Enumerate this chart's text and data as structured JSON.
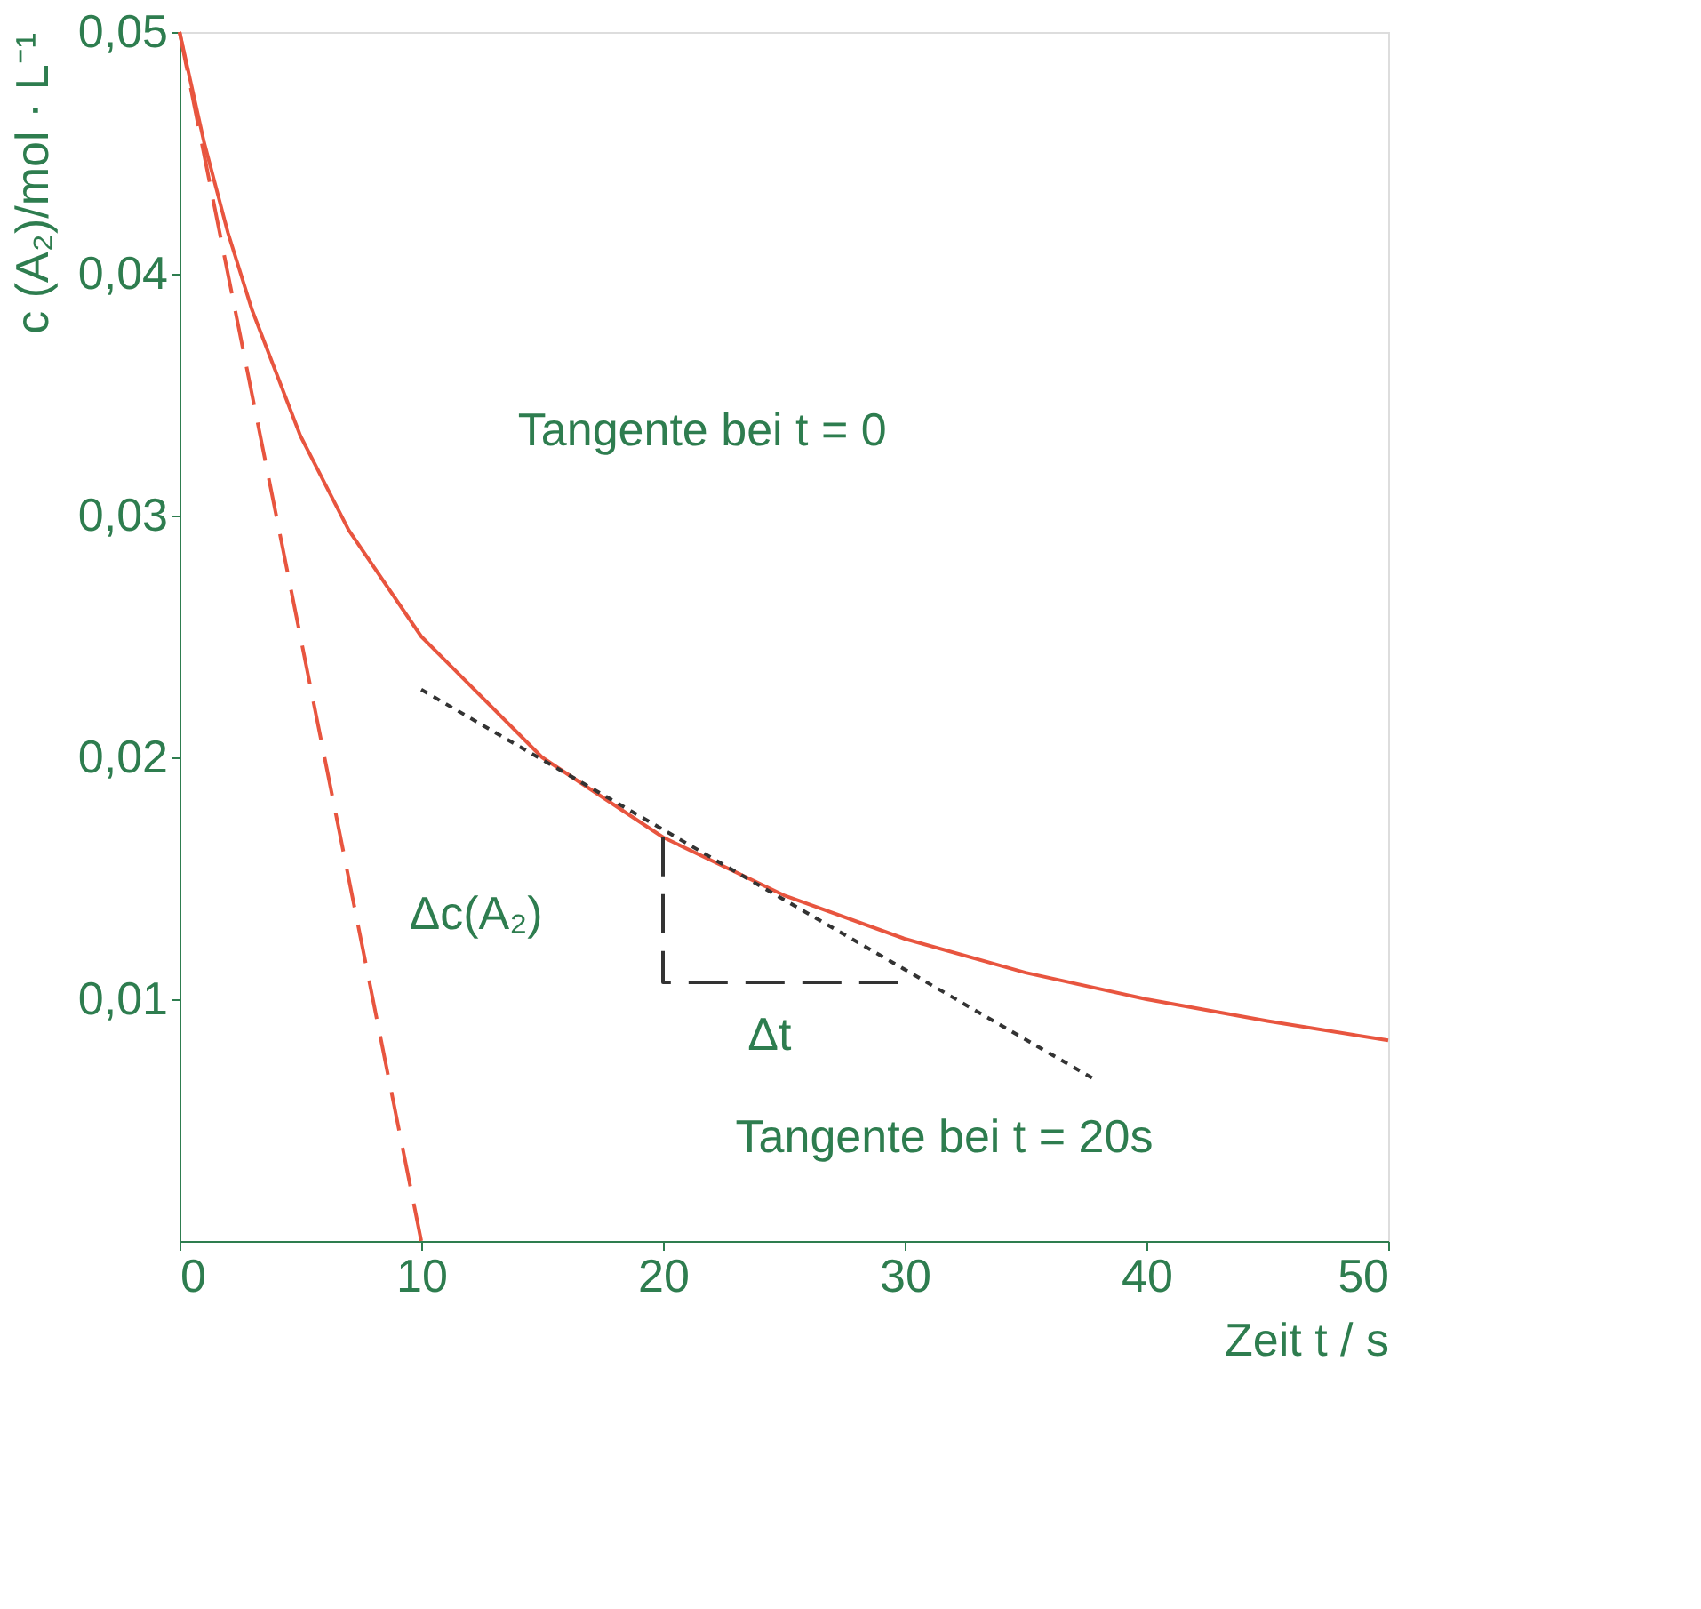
{
  "chart_data": {
    "type": "line",
    "xlabel": "Zeit t / s",
    "ylabel": "c (A₂)/mol · L⁻¹",
    "xlim": [
      0,
      50
    ],
    "xticks": [
      0,
      10,
      20,
      30,
      40,
      50
    ],
    "ylim": [
      0,
      0.05
    ],
    "yticks": [
      {
        "value": 0.01,
        "label": "0,01"
      },
      {
        "value": 0.02,
        "label": "0,02"
      },
      {
        "value": 0.03,
        "label": "0,03"
      },
      {
        "value": 0.04,
        "label": "0,04"
      },
      {
        "value": 0.05,
        "label": "0,05"
      }
    ],
    "grid": false,
    "marker": "none",
    "series": [
      {
        "color": "#e8553f",
        "line_style": "solid",
        "x": [
          0,
          1,
          2,
          3,
          5,
          7,
          10,
          15,
          20,
          25,
          30,
          35,
          40,
          45,
          50
        ],
        "values": [
          0.05,
          0.0455,
          0.0417,
          0.0385,
          0.0333,
          0.0294,
          0.025,
          0.02,
          0.0167,
          0.0143,
          0.0125,
          0.0111,
          0.01,
          0.0091,
          0.0083
        ]
      },
      {
        "color": "#e8553f",
        "line_style": "dashed",
        "x": [
          0,
          10
        ],
        "values": [
          0.05,
          0
        ]
      },
      {
        "color": "#333333",
        "line_style": "dotted",
        "x": [
          10,
          38
        ],
        "values": [
          0.0228,
          0.0066
        ]
      },
      {
        "color": "#333333",
        "line_style": "dashed",
        "x": [
          20,
          20,
          30
        ],
        "values": [
          0.0167,
          0.0107,
          0.0107
        ]
      }
    ],
    "annotations": [
      "Tangente bei t = 0",
      "Δc(A₂)",
      "Δt",
      "Tangente bei t = 20s"
    ]
  }
}
